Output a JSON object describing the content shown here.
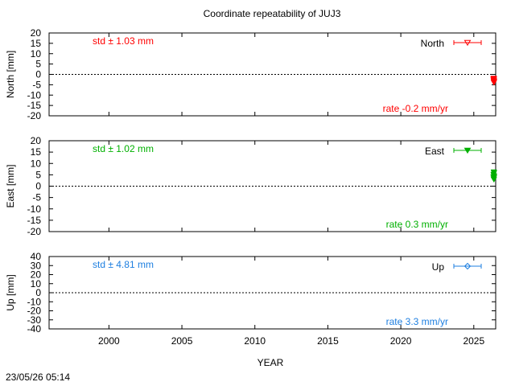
{
  "chart_data": {
    "type": "scatter",
    "title": "Coordinate repeatability of JUJ3",
    "xlabel": "YEAR",
    "timestamp": "23/05/26 05:14",
    "xlim": [
      1995.9,
      2026.5
    ],
    "xticks": [
      "2000",
      "2005",
      "2010",
      "2015",
      "2020",
      "2025"
    ],
    "panels": [
      {
        "key": "north",
        "ylabel": "North [mm]",
        "ylim": [
          -20,
          20
        ],
        "yticks": [
          "20",
          "15",
          "10",
          "5",
          "0",
          "-5",
          "-10",
          "-15",
          "-20"
        ],
        "std_text": "std ± 1.03 mm",
        "rate_text": "rate -0.2 mm/yr",
        "legend": "North",
        "color": "#ff0000",
        "marker": "triangle-down-open",
        "x": [
          2026.34,
          2026.35,
          2026.36,
          2026.37,
          2026.37,
          2026.38,
          2026.38,
          2026.39,
          2026.39,
          2026.4
        ],
        "y": [
          -2.0,
          -2.6,
          -3.1,
          -1.8,
          -3.6,
          -2.4,
          -4.0,
          -3.0,
          -2.2,
          -3.4
        ]
      },
      {
        "key": "east",
        "ylabel": "East [mm]",
        "ylim": [
          -20,
          20
        ],
        "yticks": [
          "20",
          "15",
          "10",
          "5",
          "0",
          "-5",
          "-10",
          "-15",
          "-20"
        ],
        "std_text": "std ± 1.02 mm",
        "rate_text": "rate  0.3 mm/yr",
        "legend": "East",
        "color": "#00b000",
        "marker": "triangle-down-filled",
        "x": [
          2026.34,
          2026.35,
          2026.36,
          2026.37,
          2026.37,
          2026.38,
          2026.38,
          2026.39,
          2026.39,
          2026.4
        ],
        "y": [
          4.0,
          5.2,
          3.2,
          6.3,
          4.6,
          2.9,
          5.8,
          3.8,
          6.0,
          4.4
        ]
      },
      {
        "key": "up",
        "ylabel": "Up [mm]",
        "ylim": [
          -40,
          40
        ],
        "yticks": [
          "40",
          "30",
          "20",
          "10",
          "0",
          "-10",
          "-20",
          "-30",
          "-40"
        ],
        "std_text": "std ± 4.81 mm",
        "rate_text": "rate  3.3 mm/yr",
        "legend": "Up",
        "color": "#1e7fe0",
        "marker": "diamond-open",
        "x": [],
        "y": []
      }
    ]
  }
}
